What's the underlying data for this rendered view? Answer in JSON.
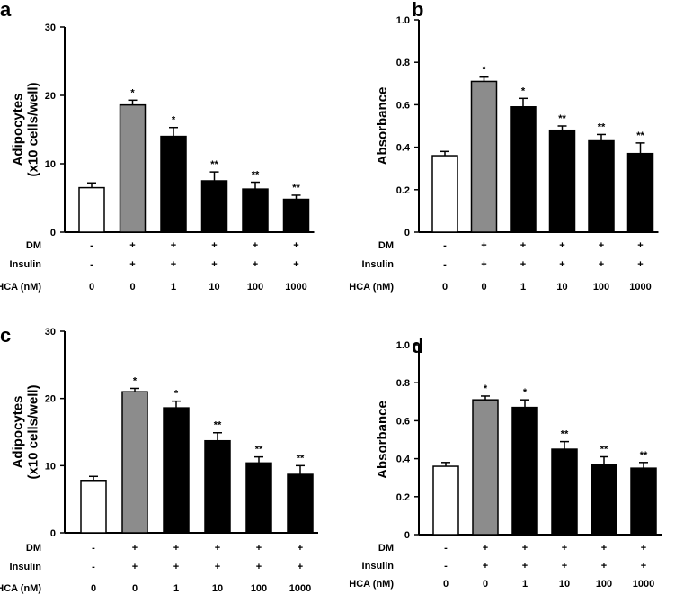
{
  "colors": {
    "control": "#ffffff",
    "vehicle": "#8c8c8c",
    "treated": "#000000",
    "axis": "#000000"
  },
  "conditions": {
    "labels": [
      "DM",
      "Insulin",
      "HCA (nM)"
    ],
    "rows": [
      [
        "-",
        "+",
        "+",
        "+",
        "+",
        "+"
      ],
      [
        "-",
        "+",
        "+",
        "+",
        "+",
        "+"
      ],
      [
        "0",
        "0",
        "1",
        "10",
        "100",
        "1000"
      ]
    ]
  },
  "chart_data": [
    {
      "panel": "a",
      "type": "bar",
      "ylabel": [
        "Adipocytes",
        "(x10 cells/well)"
      ],
      "ylim": [
        0,
        30
      ],
      "yticks": [
        "0",
        "10",
        "20",
        "30"
      ],
      "values": [
        6.5,
        18.6,
        14.0,
        7.5,
        6.3,
        4.8
      ],
      "errors": [
        0.7,
        0.7,
        1.3,
        1.3,
        1.0,
        0.6
      ],
      "significance": [
        "",
        "*",
        "*",
        "**",
        "**",
        "**"
      ],
      "bar_colors": [
        "control",
        "vehicle",
        "treated",
        "treated",
        "treated",
        "treated"
      ]
    },
    {
      "panel": "b",
      "type": "bar",
      "ylabel": [
        "Absorbance"
      ],
      "ylim": [
        0,
        1.0
      ],
      "yticks": [
        "0",
        "0.2",
        "0.4",
        "0.6",
        "0.8",
        "1.0"
      ],
      "values": [
        0.36,
        0.71,
        0.59,
        0.48,
        0.43,
        0.37
      ],
      "errors": [
        0.02,
        0.02,
        0.04,
        0.02,
        0.03,
        0.05
      ],
      "significance": [
        "",
        "*",
        "*",
        "**",
        "**",
        "**"
      ],
      "bar_colors": [
        "control",
        "vehicle",
        "treated",
        "treated",
        "treated",
        "treated"
      ]
    },
    {
      "panel": "c",
      "type": "bar",
      "ylabel": [
        "Adipocytes",
        "(x10 cells/well)"
      ],
      "ylim": [
        0,
        30
      ],
      "yticks": [
        "0",
        "10",
        "20",
        "30"
      ],
      "values": [
        7.8,
        21.0,
        18.6,
        13.7,
        10.4,
        8.7
      ],
      "errors": [
        0.6,
        0.5,
        1.0,
        1.2,
        0.9,
        1.3
      ],
      "significance": [
        "",
        "*",
        "*",
        "**",
        "**",
        "**"
      ],
      "bar_colors": [
        "control",
        "vehicle",
        "treated",
        "treated",
        "treated",
        "treated"
      ]
    },
    {
      "panel": "d",
      "type": "bar",
      "ylabel": [
        "Absorbance"
      ],
      "ylim": [
        0,
        1.0
      ],
      "yticks": [
        "0",
        "0.2",
        "0.4",
        "0.6",
        "0.8",
        "1.0"
      ],
      "values": [
        0.36,
        0.71,
        0.67,
        0.45,
        0.37,
        0.35
      ],
      "errors": [
        0.02,
        0.02,
        0.04,
        0.04,
        0.04,
        0.03
      ],
      "significance": [
        "",
        "*",
        "*",
        "**",
        "**",
        "**"
      ],
      "bar_colors": [
        "control",
        "vehicle",
        "treated",
        "treated",
        "treated",
        "treated"
      ]
    }
  ]
}
